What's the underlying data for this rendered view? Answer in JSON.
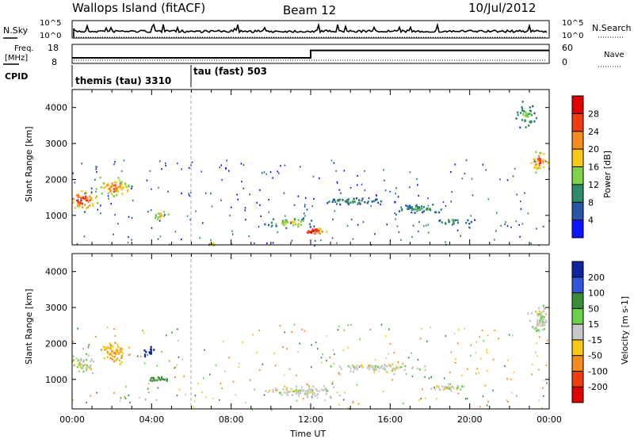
{
  "header": {
    "station": "Wallops Island (fitACF)",
    "beam": "Beam 12",
    "date": "10/Jul/2012"
  },
  "top_panels": {
    "nsky_label": "N.Sky",
    "nsearch_label": "N.Search",
    "freq_label_1": "Freq.",
    "freq_label_2": "[MHz]",
    "nave_label": "Nave",
    "cpid_label": "CPID",
    "nsky_ticks": [
      "10^5",
      "10^0"
    ],
    "nsearch_ticks": [
      "10^5",
      "10^0"
    ],
    "freq_ticks": [
      "18",
      "8"
    ],
    "nave_ticks": [
      "60",
      "0"
    ],
    "cpid_segments": [
      {
        "label": "themis (tau) 3310",
        "start_hour": 0
      },
      {
        "label": "tau (fast) 503",
        "start_hour": 6
      }
    ],
    "freq_series": [
      {
        "x": 0,
        "y": 10.5
      },
      {
        "x": 12,
        "y": 10.5
      },
      {
        "x": 12,
        "y": 15.2
      },
      {
        "x": 24,
        "y": 15.2
      }
    ]
  },
  "chart_data": [
    {
      "type": "heatmap",
      "title": "",
      "ylabel": "Slant Range [km]",
      "ylim": [
        180,
        4500
      ],
      "xlim": [
        0,
        24
      ],
      "yticks": [
        "1000",
        "2000",
        "3000",
        "4000"
      ],
      "colorbar_label": "Power [dB]",
      "colorbar_ticks": [
        "4",
        "8",
        "12",
        "16",
        "20",
        "24",
        "28"
      ],
      "colorbar_colors": [
        "#0d14ff",
        "#2a56a8",
        "#2f8a6a",
        "#7fd14a",
        "#f7c81a",
        "#f58c1e",
        "#ef3d0f",
        "#e00000"
      ],
      "features": [
        {
          "x": 0.5,
          "y": 1450,
          "dx": 0.9,
          "dy": 380,
          "level": 0.92
        },
        {
          "x": 2.1,
          "y": 1800,
          "dx": 1.1,
          "dy": 350,
          "level": 0.78
        },
        {
          "x": 4.4,
          "y": 1020,
          "dx": 0.6,
          "dy": 160,
          "level": 0.65
        },
        {
          "x": 12.1,
          "y": 570,
          "dx": 1.0,
          "dy": 160,
          "level": 0.98
        },
        {
          "x": 11.0,
          "y": 820,
          "dx": 1.6,
          "dy": 170,
          "level": 0.55
        },
        {
          "x": 14.0,
          "y": 1420,
          "dx": 2.6,
          "dy": 120,
          "level": 0.35
        },
        {
          "x": 17.5,
          "y": 1200,
          "dx": 1.5,
          "dy": 200,
          "level": 0.38
        },
        {
          "x": 19.2,
          "y": 850,
          "dx": 1.2,
          "dy": 110,
          "level": 0.42
        },
        {
          "x": 23.5,
          "y": 2550,
          "dx": 0.7,
          "dy": 380,
          "level": 0.82
        },
        {
          "x": 22.8,
          "y": 3800,
          "dx": 0.6,
          "dy": 450,
          "level": 0.45
        },
        {
          "x": 7.0,
          "y": 230,
          "dx": 0.6,
          "dy": 60,
          "level": 0.7
        }
      ]
    },
    {
      "type": "heatmap",
      "title": "",
      "ylabel": "Slant Range [km]",
      "xlabel": "Time UT",
      "ylim": [
        180,
        4500
      ],
      "xlim": [
        0,
        24
      ],
      "xticks": [
        "00:00",
        "04:00",
        "08:00",
        "12:00",
        "16:00",
        "20:00",
        "00:00"
      ],
      "yticks": [
        "1000",
        "2000",
        "3000",
        "4000"
      ],
      "colorbar_label": "Velocity [m s-1]",
      "colorbar_ticks": [
        "200",
        "100",
        "50",
        "15",
        "-15",
        "-50",
        "-100",
        "-200"
      ],
      "colorbar_colors": [
        "#1024a0",
        "#2f55d8",
        "#3a8e3a",
        "#6ad14a",
        "#c8c8c8",
        "#f7c81a",
        "#f58c1e",
        "#ef3d0f",
        "#e00000"
      ],
      "features": [
        {
          "x": 0.5,
          "y": 1450,
          "dx": 0.9,
          "dy": 330,
          "value": 0
        },
        {
          "x": 2.1,
          "y": 1800,
          "dx": 1.0,
          "dy": 380,
          "value": -30
        },
        {
          "x": 3.8,
          "y": 1780,
          "dx": 0.4,
          "dy": 230,
          "value": 200
        },
        {
          "x": 4.2,
          "y": 1030,
          "dx": 0.9,
          "dy": 120,
          "value": 60
        },
        {
          "x": 11.5,
          "y": 700,
          "dx": 2.6,
          "dy": 220,
          "value": 0
        },
        {
          "x": 15.5,
          "y": 1350,
          "dx": 3.0,
          "dy": 150,
          "value": 0
        },
        {
          "x": 19.0,
          "y": 800,
          "dx": 1.5,
          "dy": 140,
          "value": 0
        },
        {
          "x": 23.5,
          "y": 2700,
          "dx": 0.7,
          "dy": 600,
          "value": 0
        }
      ]
    }
  ]
}
